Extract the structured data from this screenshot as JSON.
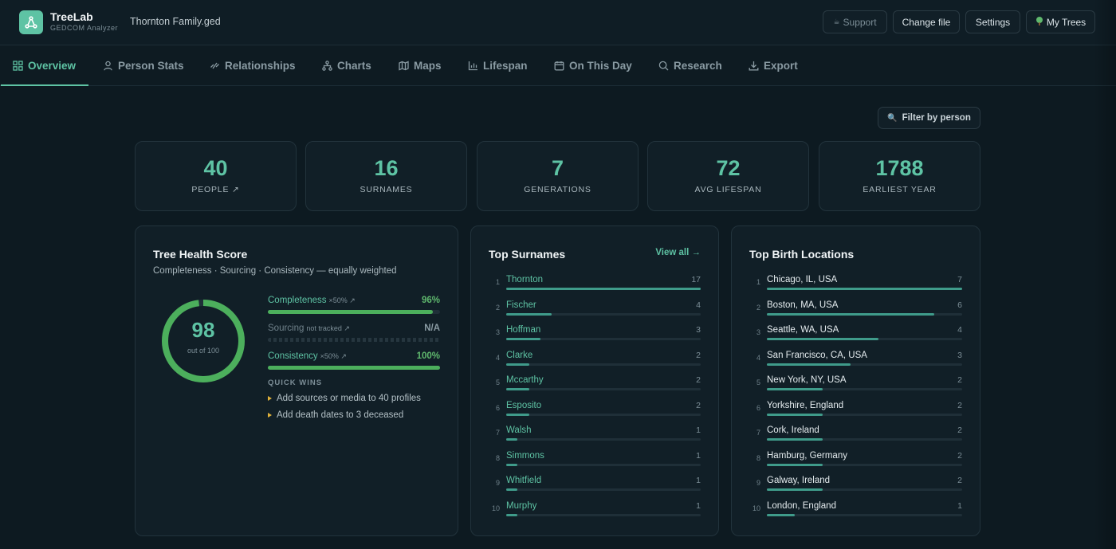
{
  "app": {
    "name": "TreeLab",
    "subtitle": "GEDCOM Analyzer",
    "file": "Thornton Family.ged"
  },
  "header_buttons": {
    "support": "Support",
    "change_file": "Change file",
    "settings": "Settings",
    "my_trees": "My Trees"
  },
  "tabs": [
    {
      "label": "Overview",
      "icon": "grid-icon",
      "active": true
    },
    {
      "label": "Person Stats",
      "icon": "person-icon"
    },
    {
      "label": "Relationships",
      "icon": "link-icon"
    },
    {
      "label": "Charts",
      "icon": "tree-nodes-icon"
    },
    {
      "label": "Maps",
      "icon": "map-icon"
    },
    {
      "label": "Lifespan",
      "icon": "bar-chart-icon"
    },
    {
      "label": "On This Day",
      "icon": "calendar-icon"
    },
    {
      "label": "Research",
      "icon": "search-icon"
    },
    {
      "label": "Export",
      "icon": "download-icon"
    }
  ],
  "filter_label": "Filter by person",
  "stats": [
    {
      "value": "40",
      "label": "PEOPLE ↗"
    },
    {
      "value": "16",
      "label": "SURNAMES"
    },
    {
      "value": "7",
      "label": "GENERATIONS"
    },
    {
      "value": "72",
      "label": "AVG LIFESPAN"
    },
    {
      "value": "1788",
      "label": "EARLIEST YEAR"
    }
  ],
  "health": {
    "title": "Tree Health Score",
    "subtitle": "Completeness · Sourcing · Consistency — equally weighted",
    "score": "98",
    "score_max_label": "out of 100",
    "score_fraction": 0.98,
    "metrics": [
      {
        "name": "Completeness",
        "note": "×50% ↗",
        "value": "96%",
        "fill": 0.96,
        "tracked": true
      },
      {
        "name": "Sourcing",
        "note": "not tracked ↗",
        "value": "N/A",
        "fill": 0,
        "tracked": false
      },
      {
        "name": "Consistency",
        "note": "×50% ↗",
        "value": "100%",
        "fill": 1.0,
        "tracked": true
      }
    ],
    "quick_wins_title": "QUICK WINS",
    "quick_wins": [
      "Add sources or media to 40 profiles",
      "Add death dates to 3 deceased"
    ]
  },
  "surnames": {
    "title": "Top Surnames",
    "view_all": "View all →",
    "max": 17,
    "items": [
      {
        "rank": "1",
        "name": "Thornton",
        "count": 17
      },
      {
        "rank": "2",
        "name": "Fischer",
        "count": 4
      },
      {
        "rank": "3",
        "name": "Hoffman",
        "count": 3
      },
      {
        "rank": "4",
        "name": "Clarke",
        "count": 2
      },
      {
        "rank": "5",
        "name": "Mccarthy",
        "count": 2
      },
      {
        "rank": "6",
        "name": "Esposito",
        "count": 2
      },
      {
        "rank": "7",
        "name": "Walsh",
        "count": 1
      },
      {
        "rank": "8",
        "name": "Simmons",
        "count": 1
      },
      {
        "rank": "9",
        "name": "Whitfield",
        "count": 1
      },
      {
        "rank": "10",
        "name": "Murphy",
        "count": 1
      }
    ]
  },
  "locations": {
    "title": "Top Birth Locations",
    "max": 7,
    "items": [
      {
        "rank": "1",
        "name": "Chicago, IL, USA",
        "count": 7
      },
      {
        "rank": "2",
        "name": "Boston, MA, USA",
        "count": 6
      },
      {
        "rank": "3",
        "name": "Seattle, WA, USA",
        "count": 4
      },
      {
        "rank": "4",
        "name": "San Francisco, CA, USA",
        "count": 3
      },
      {
        "rank": "5",
        "name": "New York, NY, USA",
        "count": 2
      },
      {
        "rank": "6",
        "name": "Yorkshire, England",
        "count": 2
      },
      {
        "rank": "7",
        "name": "Cork, Ireland",
        "count": 2
      },
      {
        "rank": "8",
        "name": "Hamburg, Germany",
        "count": 2
      },
      {
        "rank": "9",
        "name": "Galway, Ireland",
        "count": 2
      },
      {
        "rank": "10",
        "name": "London, England",
        "count": 1
      }
    ]
  },
  "colors": {
    "accent": "#5ec3a4",
    "success": "#4caf5c",
    "warning": "#e0b13a",
    "background": "#0d1a21"
  }
}
